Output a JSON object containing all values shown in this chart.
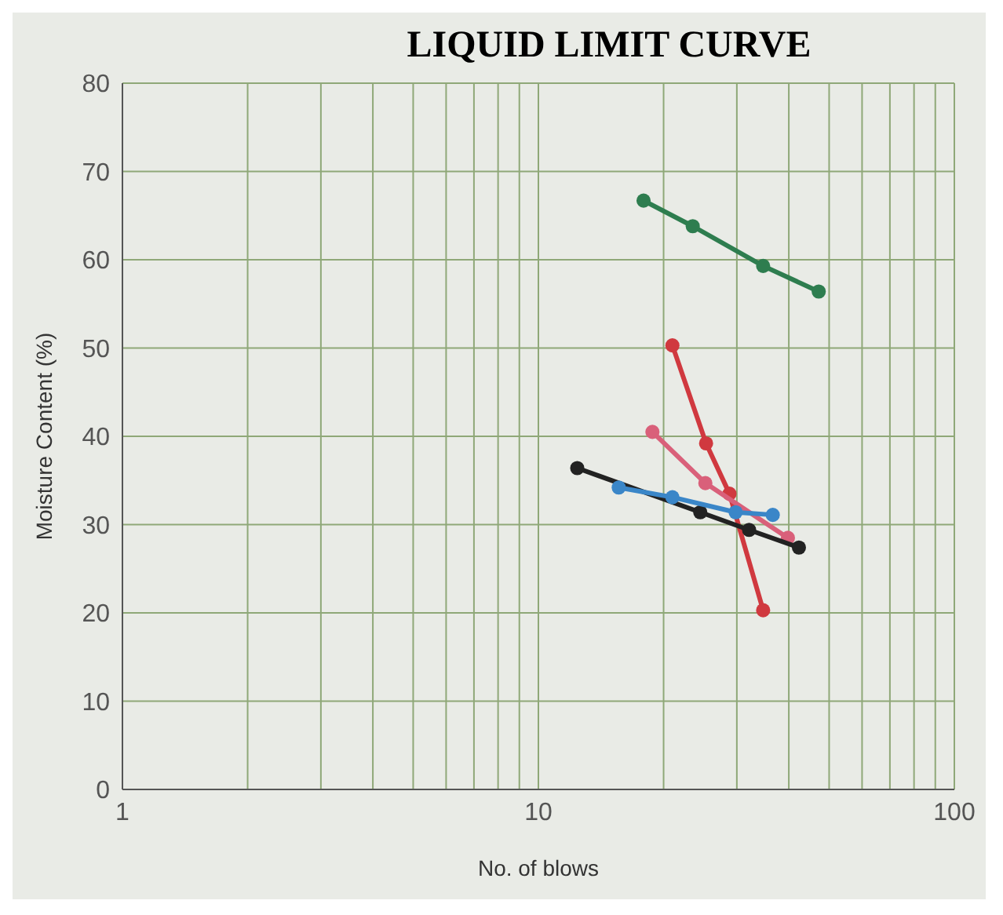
{
  "chart_data": {
    "type": "line",
    "title": "LIQUID LIMIT CURVE",
    "xlabel": "No. of blows",
    "ylabel": "Moisture Content (%)",
    "log": "x",
    "xlim": [
      1,
      100
    ],
    "xticks": [
      1,
      {
        "value": 2,
        "label": null
      },
      {
        "value": 3,
        "label": null
      },
      {
        "value": 4,
        "label": null
      },
      {
        "value": 5,
        "label": null
      },
      {
        "value": 6,
        "label": null
      },
      {
        "value": 7,
        "label": null
      },
      {
        "value": 8,
        "label": null
      },
      {
        "value": 9,
        "label": null
      },
      10,
      {
        "value": 20,
        "label": null
      },
      {
        "value": 30,
        "label": null
      },
      {
        "value": 40,
        "label": null
      },
      {
        "value": 50,
        "label": null
      },
      {
        "value": 60,
        "label": null
      },
      {
        "value": 70,
        "label": null
      },
      {
        "value": 80,
        "label": null
      },
      {
        "value": 90,
        "label": null
      },
      100
    ],
    "ylim": [
      0,
      80
    ],
    "yticks": [
      0,
      10,
      20,
      30,
      40,
      50,
      60,
      70,
      80
    ],
    "grid": true,
    "marker": "circle",
    "line_style": "solid",
    "series": [
      {
        "color": "#2e7d4f",
        "x": [
          17.9,
          23.5,
          34.7,
          47.2
        ],
        "values": [
          66.7,
          63.8,
          59.3,
          56.4
        ]
      },
      {
        "color": "#d0393f",
        "x": [
          21.0,
          25.3,
          28.8,
          34.7
        ],
        "values": [
          50.3,
          39.2,
          33.5,
          20.3
        ]
      },
      {
        "color": "#d9607a",
        "x": [
          18.8,
          25.2,
          39.8
        ],
        "values": [
          40.5,
          34.7,
          28.5
        ]
      },
      {
        "color": "#222222",
        "x": [
          12.4,
          24.5,
          32.1,
          42.3
        ],
        "values": [
          36.4,
          31.4,
          29.4,
          27.4
        ]
      },
      {
        "color": "#3a86c8",
        "x": [
          15.6,
          21.0,
          29.8,
          36.6
        ],
        "values": [
          34.2,
          33.1,
          31.4,
          31.1
        ]
      }
    ]
  }
}
